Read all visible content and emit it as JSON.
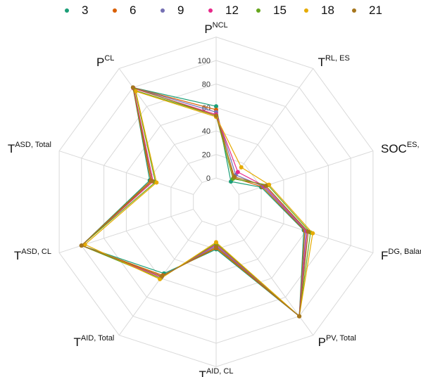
{
  "chart_data": {
    "type": "radar",
    "axes": [
      {
        "base": "P",
        "sup": "NCL"
      },
      {
        "base": "T",
        "sup": "RL, ES"
      },
      {
        "base": "SOC",
        "sup": "ES, Balance"
      },
      {
        "base": "F",
        "sup": "DG, Balance"
      },
      {
        "base": "P",
        "sup": "PV, Total"
      },
      {
        "base": "T",
        "sup": "AID, CL"
      },
      {
        "base": "T",
        "sup": "AID, Total"
      },
      {
        "base": "T",
        "sup": "ASD, CL"
      },
      {
        "base": "T",
        "sup": "ASD, Total"
      },
      {
        "base": "P",
        "sup": "CL"
      }
    ],
    "r_ticks": [
      "0",
      "20",
      "40",
      "60",
      "80",
      "100"
    ],
    "rlim": [
      0,
      100
    ],
    "grid": true,
    "legend_position": "top",
    "series": [
      {
        "name": "3",
        "color": "#1b9e77",
        "values": [
          61,
          1,
          20,
          58,
          100,
          20,
          55,
          100,
          39,
          100
        ]
      },
      {
        "name": "6",
        "color": "#d95f02",
        "values": [
          58,
          5,
          21,
          59,
          100,
          19,
          57,
          100,
          38,
          100
        ]
      },
      {
        "name": "9",
        "color": "#7570b3",
        "values": [
          56,
          8,
          22,
          60,
          100,
          17,
          58,
          100,
          37,
          100
        ]
      },
      {
        "name": "12",
        "color": "#e7298a",
        "values": [
          54,
          11,
          23,
          61,
          100,
          16,
          59,
          100,
          36,
          99
        ]
      },
      {
        "name": "15",
        "color": "#66a61e",
        "values": [
          53,
          4,
          26,
          64,
          100,
          15,
          60,
          100,
          34,
          97
        ]
      },
      {
        "name": "18",
        "color": "#e6ab02",
        "values": [
          52,
          16,
          27,
          66,
          100,
          14,
          61,
          97,
          33,
          96
        ]
      },
      {
        "name": "21",
        "color": "#a6761d",
        "values": [
          53,
          6,
          24,
          62,
          100,
          18,
          58,
          100,
          37,
          100
        ]
      }
    ]
  }
}
